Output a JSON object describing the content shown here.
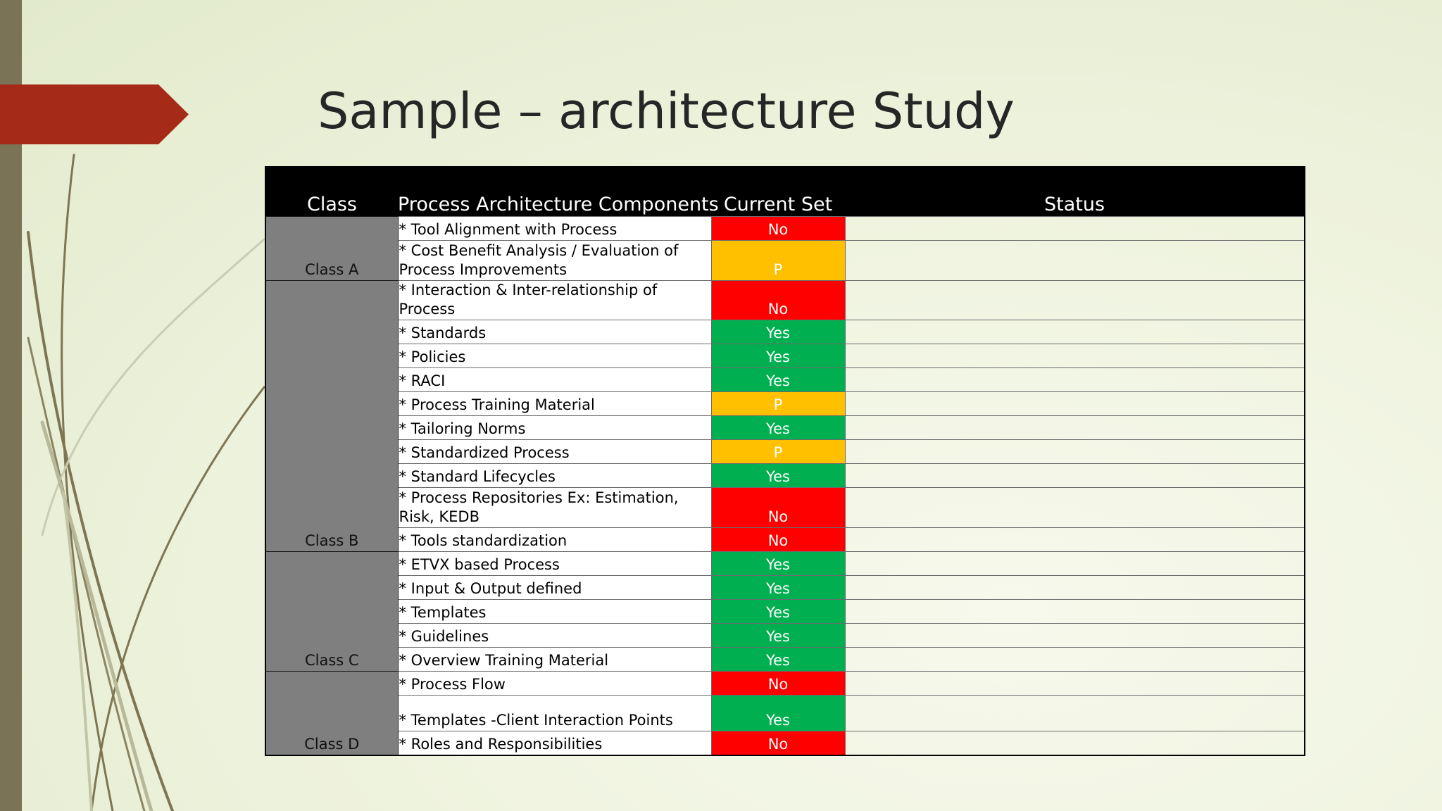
{
  "slide": {
    "title": "Sample – architecture Study",
    "colors": {
      "accent_pentagon": "#a52a17",
      "side_bar": "#7a7355",
      "header_bg": "#000000",
      "class_cell": "#7f7f7f",
      "no": "#ff0000",
      "yes": "#00b050",
      "partial": "#ffc000"
    }
  },
  "table": {
    "headers": {
      "class": "Class",
      "component": "Process Architecture Components",
      "current": "Current Set",
      "status": "Status"
    },
    "groups": [
      {
        "label": "Class A",
        "rows": [
          {
            "component": "* Tool Alignment with Process",
            "current": "No",
            "state": "no",
            "status": ""
          },
          {
            "component": "* Cost Benefit Analysis / Evaluation of Process Improvements",
            "current": "P",
            "state": "p",
            "status": ""
          }
        ]
      },
      {
        "label": "Class B",
        "rows": [
          {
            "component": "* Interaction & Inter-relationship of Process",
            "current": "No",
            "state": "no",
            "status": ""
          },
          {
            "component": "* Standards",
            "current": "Yes",
            "state": "yes",
            "status": ""
          },
          {
            "component": "* Policies",
            "current": "Yes",
            "state": "yes",
            "status": ""
          },
          {
            "component": "* RACI",
            "current": "Yes",
            "state": "yes",
            "status": ""
          },
          {
            "component": "* Process Training Material",
            "current": "P",
            "state": "p",
            "status": ""
          },
          {
            "component": "* Tailoring Norms",
            "current": "Yes",
            "state": "yes",
            "status": ""
          },
          {
            "component": "* Standardized Process",
            "current": "P",
            "state": "p",
            "status": ""
          },
          {
            "component": "* Standard Lifecycles",
            "current": "Yes",
            "state": "yes",
            "status": ""
          },
          {
            "component": "* Process Repositories Ex: Estimation, Risk, KEDB",
            "current": "No",
            "state": "no",
            "status": ""
          },
          {
            "component": "* Tools standardization",
            "current": "No",
            "state": "no",
            "status": ""
          }
        ]
      },
      {
        "label": "Class C",
        "rows": [
          {
            "component": "* ETVX based Process",
            "current": "Yes",
            "state": "yes",
            "status": ""
          },
          {
            "component": "* Input & Output defined",
            "current": "Yes",
            "state": "yes",
            "status": ""
          },
          {
            "component": "* Templates",
            "current": "Yes",
            "state": "yes",
            "status": ""
          },
          {
            "component": "* Guidelines",
            "current": "Yes",
            "state": "yes",
            "status": ""
          },
          {
            "component": "* Overview Training Material",
            "current": "Yes",
            "state": "yes",
            "status": ""
          }
        ]
      },
      {
        "label": "Class D",
        "rows": [
          {
            "component": "* Process Flow",
            "current": "No",
            "state": "no",
            "status": ""
          },
          {
            "component": "* Templates -Client Interaction Points",
            "current": "Yes",
            "state": "yes",
            "status": ""
          },
          {
            "component": "* Roles and Responsibilities",
            "current": "No",
            "state": "no",
            "status": ""
          }
        ]
      }
    ]
  }
}
